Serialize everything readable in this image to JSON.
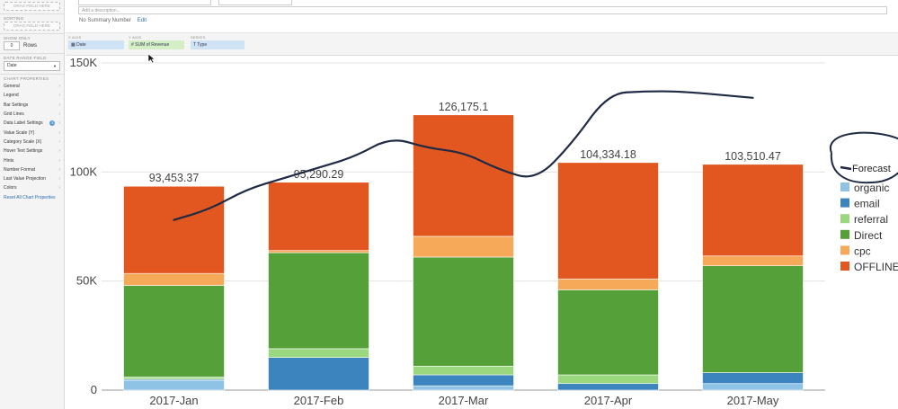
{
  "left_panel": {
    "x_field_placeholder": "DRAG FIELD HERE",
    "sorting_title": "SORTING",
    "sorting_placeholder": "DRAG FIELD HERE",
    "show_only_title": "SHOW ONLY",
    "show_only_value": "0",
    "show_only_unit": "Rows",
    "date_range_title": "DATE RANGE FIELD",
    "date_range_value": "Date",
    "chart_properties_title": "CHART PROPERTIES",
    "properties": [
      "General",
      "Legend",
      "Bar Settings",
      "Grid Lines",
      "Data Label Settings",
      "Value Scale (Y)",
      "Category Scale (X)",
      "Hover Text Settings",
      "Hints",
      "Number Format",
      "Last Value Projection",
      "Colors"
    ],
    "data_label_badge": "3",
    "reset_link": "Reset All Chart Properties"
  },
  "header": {
    "description_placeholder": "Add a description...",
    "summary_text": "No Summary Number",
    "edit_link": "Edit"
  },
  "axis_bar": {
    "x_axis_label": "X AXIS",
    "x_axis_field": "Date",
    "y_axis_label": "Y AXIS",
    "y_axis_field": "SUM of Revenue",
    "series_label": "SERIES",
    "series_field": "Type"
  },
  "chart_data": {
    "type": "bar",
    "stacked": true,
    "categories": [
      "2017-Jan",
      "2017-Feb",
      "2017-Mar",
      "2017-Apr",
      "2017-May"
    ],
    "ylim": [
      0,
      150000
    ],
    "yticks": [
      0,
      50000,
      100000,
      150000
    ],
    "ytick_labels": [
      "0",
      "50K",
      "100K",
      "150K"
    ],
    "series": [
      {
        "name": "organic",
        "color": "#8ec3e6",
        "values": [
          4500,
          0,
          2000,
          0,
          3000
        ]
      },
      {
        "name": "email",
        "color": "#3c84be",
        "values": [
          500,
          15000,
          5000,
          3000,
          5000
        ]
      },
      {
        "name": "referral",
        "color": "#9bd77e",
        "values": [
          1000,
          4000,
          4000,
          4000,
          0
        ]
      },
      {
        "name": "Direct",
        "color": "#56a039",
        "values": [
          42000,
          44000,
          50000,
          39000,
          49000
        ]
      },
      {
        "name": "cpc",
        "color": "#f7a95a",
        "values": [
          5500,
          1000,
          9500,
          5000,
          4500
        ]
      },
      {
        "name": "OFFLINE",
        "color": "#e2561f",
        "values": [
          39953.37,
          31290.29,
          55675.1,
          53334.18,
          42010.47
        ]
      }
    ],
    "totals": [
      93453.37,
      95290.29,
      126175.1,
      104334.18,
      103510.47
    ],
    "total_labels": [
      "93,453.37",
      "95,290.29",
      "126,175.1",
      "104,334.18",
      "103,510.47"
    ],
    "forecast_line": {
      "name": "Forecast",
      "color": "#1f2a44",
      "x": [
        0,
        0.25,
        0.5,
        0.75,
        1.0,
        1.25,
        1.5,
        1.75,
        2.0,
        2.25,
        2.5,
        2.75,
        3.0,
        3.25,
        3.5,
        4.0
      ],
      "y": [
        78000,
        83000,
        92000,
        97000,
        102000,
        107000,
        116000,
        111000,
        109000,
        101000,
        96000,
        113000,
        136000,
        137000,
        137000,
        134000
      ]
    },
    "legend_placement": "right",
    "grid": "horizontal"
  }
}
